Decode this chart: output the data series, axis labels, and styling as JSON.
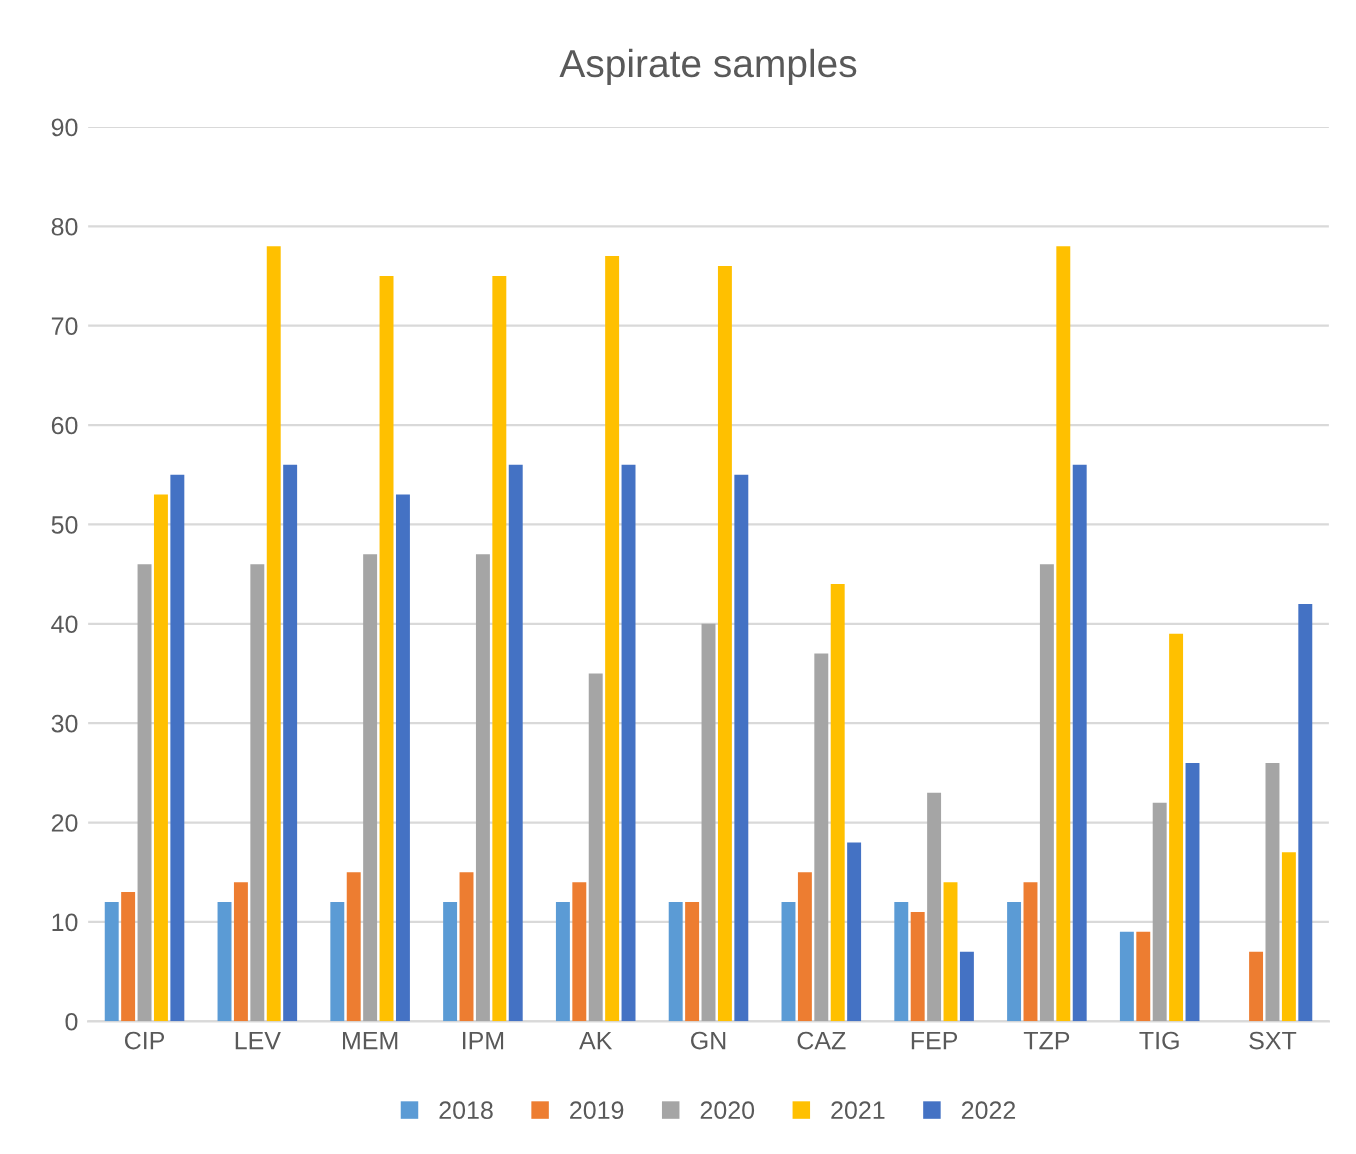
{
  "chart_data": {
    "type": "bar",
    "title": "Aspirate samples",
    "categories": [
      "CIP",
      "LEV",
      "MEM",
      "IPM",
      "AK",
      "GN",
      "CAZ",
      "FEP",
      "TZP",
      "TIG",
      "SXT"
    ],
    "series": [
      {
        "name": "2018",
        "color": "#5b9bd5",
        "values": [
          12,
          12,
          12,
          12,
          12,
          12,
          12,
          12,
          12,
          9,
          null
        ]
      },
      {
        "name": "2019",
        "color": "#ed7d31",
        "values": [
          13,
          14,
          15,
          15,
          14,
          12,
          15,
          11,
          14,
          9,
          7
        ]
      },
      {
        "name": "2020",
        "color": "#a5a5a5",
        "values": [
          46,
          46,
          47,
          47,
          35,
          40,
          37,
          23,
          46,
          22,
          26
        ]
      },
      {
        "name": "2021",
        "color": "#ffc000",
        "values": [
          53,
          78,
          75,
          75,
          77,
          76,
          44,
          14,
          78,
          39,
          17
        ]
      },
      {
        "name": "2022",
        "color": "#4472c4",
        "values": [
          55,
          56,
          53,
          56,
          56,
          55,
          18,
          7,
          56,
          26,
          42
        ]
      }
    ],
    "ylim": [
      0,
      90
    ],
    "yticks": [
      0,
      10,
      20,
      30,
      40,
      50,
      60,
      70,
      80,
      90
    ],
    "grid": "y",
    "legend": "bottom"
  }
}
